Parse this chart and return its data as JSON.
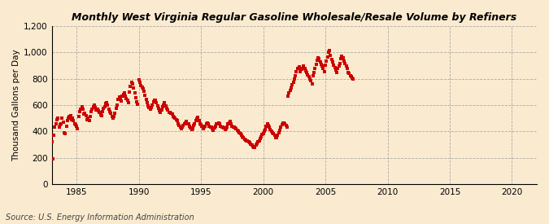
{
  "title": "Monthly West Virginia Regular Gasoline Wholesale/Resale Volume by Refiners",
  "ylabel": "Thousand Gallons per Day",
  "source": "Source: U.S. Energy Information Administration",
  "background_color": "#faebd0",
  "dot_color": "#cc0000",
  "grid_color": "#999999",
  "xlim": [
    1983,
    2022
  ],
  "ylim": [
    0,
    1200
  ],
  "yticks": [
    0,
    200,
    400,
    600,
    800,
    1000,
    1200
  ],
  "ytick_labels": [
    "0",
    "200",
    "400",
    "600",
    "800",
    "1,000",
    "1,200"
  ],
  "xticks": [
    1985,
    1990,
    1995,
    2000,
    2005,
    2010,
    2015,
    2020
  ],
  "data_x": [
    1983.0,
    1983.08,
    1983.17,
    1983.25,
    1983.33,
    1983.42,
    1983.5,
    1983.58,
    1983.67,
    1983.75,
    1983.83,
    1983.92,
    1984.0,
    1984.08,
    1984.17,
    1984.25,
    1984.33,
    1984.42,
    1984.5,
    1984.58,
    1984.67,
    1984.75,
    1984.83,
    1984.92,
    1985.0,
    1985.08,
    1985.17,
    1985.25,
    1985.33,
    1985.42,
    1985.5,
    1985.58,
    1985.67,
    1985.75,
    1985.83,
    1985.92,
    1986.0,
    1986.08,
    1986.17,
    1986.25,
    1986.33,
    1986.42,
    1986.5,
    1986.58,
    1986.67,
    1986.75,
    1986.83,
    1986.92,
    1987.0,
    1987.08,
    1987.17,
    1987.25,
    1987.33,
    1987.42,
    1987.5,
    1987.58,
    1987.67,
    1987.75,
    1987.83,
    1987.92,
    1988.0,
    1988.08,
    1988.17,
    1988.25,
    1988.33,
    1988.42,
    1988.5,
    1988.58,
    1988.67,
    1988.75,
    1988.83,
    1988.92,
    1989.0,
    1989.08,
    1989.17,
    1989.25,
    1989.33,
    1989.42,
    1989.5,
    1989.58,
    1989.67,
    1989.75,
    1989.83,
    1989.92,
    1990.0,
    1990.08,
    1990.17,
    1990.25,
    1990.33,
    1990.42,
    1990.5,
    1990.58,
    1990.67,
    1990.75,
    1990.83,
    1990.92,
    1991.0,
    1991.08,
    1991.17,
    1991.25,
    1991.33,
    1991.42,
    1991.5,
    1991.58,
    1991.67,
    1991.75,
    1991.83,
    1991.92,
    1992.0,
    1992.08,
    1992.17,
    1992.25,
    1992.33,
    1992.42,
    1992.5,
    1992.58,
    1992.67,
    1992.75,
    1992.83,
    1992.92,
    1993.0,
    1993.08,
    1993.17,
    1993.25,
    1993.33,
    1993.42,
    1993.5,
    1993.58,
    1993.67,
    1993.75,
    1993.83,
    1993.92,
    1994.0,
    1994.08,
    1994.17,
    1994.25,
    1994.33,
    1994.42,
    1994.5,
    1994.58,
    1994.67,
    1994.75,
    1994.83,
    1994.92,
    1995.0,
    1995.08,
    1995.17,
    1995.25,
    1995.33,
    1995.42,
    1995.5,
    1995.58,
    1995.67,
    1995.75,
    1995.83,
    1995.92,
    1996.0,
    1996.08,
    1996.17,
    1996.25,
    1996.33,
    1996.42,
    1996.5,
    1996.58,
    1996.67,
    1996.75,
    1996.83,
    1996.92,
    1997.0,
    1997.08,
    1997.17,
    1997.25,
    1997.33,
    1997.42,
    1997.5,
    1997.58,
    1997.67,
    1997.75,
    1997.83,
    1997.92,
    1998.0,
    1998.08,
    1998.17,
    1998.25,
    1998.33,
    1998.42,
    1998.5,
    1998.58,
    1998.67,
    1998.75,
    1998.83,
    1998.92,
    1999.0,
    1999.08,
    1999.17,
    1999.25,
    1999.33,
    1999.42,
    1999.5,
    1999.58,
    1999.67,
    1999.75,
    1999.83,
    1999.92,
    2000.0,
    2000.08,
    2000.17,
    2000.25,
    2000.33,
    2000.42,
    2000.5,
    2000.58,
    2000.67,
    2000.75,
    2000.83,
    2000.92,
    2001.0,
    2001.08,
    2001.17,
    2001.25,
    2001.33,
    2001.42,
    2001.5,
    2001.58,
    2001.67,
    2001.75,
    2001.83,
    2001.92,
    2002.0,
    2002.08,
    2002.17,
    2002.25,
    2002.33,
    2002.42,
    2002.5,
    2002.58,
    2002.67,
    2002.75,
    2002.83,
    2002.92,
    2003.0,
    2003.08,
    2003.17,
    2003.25,
    2003.33,
    2003.42,
    2003.5,
    2003.58,
    2003.67,
    2003.75,
    2003.83,
    2003.92,
    2004.0,
    2004.08,
    2004.17,
    2004.25,
    2004.33,
    2004.42,
    2004.5,
    2004.58,
    2004.67,
    2004.75,
    2004.83,
    2004.92,
    2005.0,
    2005.08,
    2005.17,
    2005.25,
    2005.33,
    2005.42,
    2005.5,
    2005.58,
    2005.67,
    2005.75,
    2005.83,
    2005.92,
    2006.0,
    2006.08,
    2006.17,
    2006.25,
    2006.33,
    2006.42,
    2006.5,
    2006.58,
    2006.67,
    2006.75,
    2006.83,
    2006.92,
    2007.0,
    2007.08,
    2007.17,
    2007.25
  ],
  "data_y": [
    320,
    190,
    370,
    430,
    460,
    490,
    500,
    430,
    450,
    460,
    500,
    470,
    390,
    380,
    440,
    480,
    500,
    510,
    520,
    490,
    500,
    480,
    460,
    450,
    440,
    420,
    510,
    550,
    570,
    590,
    570,
    530,
    540,
    520,
    490,
    500,
    480,
    510,
    550,
    570,
    590,
    600,
    580,
    560,
    570,
    555,
    545,
    525,
    520,
    550,
    575,
    590,
    610,
    620,
    600,
    570,
    550,
    535,
    515,
    500,
    510,
    540,
    575,
    600,
    640,
    660,
    650,
    630,
    665,
    680,
    690,
    665,
    650,
    635,
    620,
    700,
    740,
    775,
    760,
    730,
    690,
    655,
    625,
    605,
    790,
    770,
    750,
    735,
    725,
    705,
    675,
    645,
    615,
    595,
    580,
    570,
    580,
    600,
    625,
    635,
    635,
    615,
    595,
    575,
    555,
    545,
    565,
    585,
    600,
    615,
    595,
    575,
    560,
    545,
    545,
    535,
    530,
    510,
    505,
    500,
    490,
    480,
    460,
    445,
    430,
    420,
    430,
    445,
    455,
    465,
    475,
    460,
    455,
    440,
    425,
    415,
    420,
    445,
    460,
    485,
    495,
    505,
    480,
    460,
    450,
    440,
    420,
    430,
    440,
    455,
    465,
    455,
    440,
    435,
    430,
    420,
    410,
    425,
    440,
    455,
    460,
    465,
    455,
    440,
    435,
    430,
    425,
    415,
    420,
    435,
    455,
    465,
    475,
    455,
    440,
    435,
    430,
    425,
    420,
    410,
    400,
    390,
    380,
    370,
    360,
    350,
    340,
    335,
    330,
    325,
    320,
    315,
    305,
    295,
    285,
    280,
    280,
    295,
    310,
    320,
    330,
    345,
    360,
    375,
    385,
    400,
    415,
    440,
    455,
    445,
    430,
    415,
    400,
    390,
    380,
    370,
    355,
    355,
    370,
    390,
    410,
    430,
    450,
    465,
    465,
    455,
    445,
    435,
    665,
    690,
    710,
    730,
    755,
    775,
    795,
    825,
    855,
    875,
    880,
    890,
    855,
    870,
    880,
    895,
    875,
    860,
    845,
    830,
    815,
    795,
    785,
    760,
    825,
    850,
    880,
    910,
    940,
    960,
    950,
    930,
    910,
    895,
    875,
    855,
    905,
    935,
    965,
    1000,
    1015,
    975,
    945,
    925,
    905,
    885,
    865,
    850,
    875,
    895,
    915,
    950,
    970,
    960,
    935,
    915,
    895,
    875,
    850,
    840,
    825,
    815,
    805,
    795
  ],
  "title_fontsize": 9,
  "tick_fontsize": 7.5,
  "ylabel_fontsize": 7.5,
  "source_fontsize": 7
}
